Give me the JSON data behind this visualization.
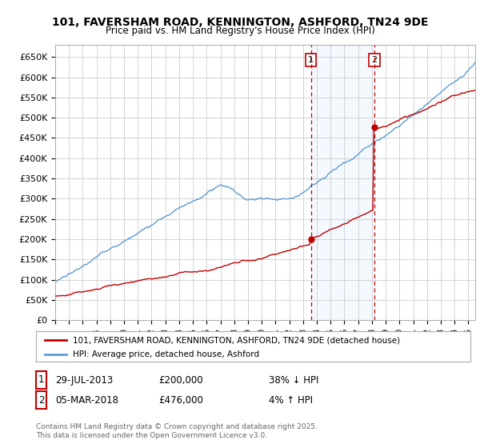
{
  "title_line1": "101, FAVERSHAM ROAD, KENNINGTON, ASHFORD, TN24 9DE",
  "title_line2": "Price paid vs. HM Land Registry's House Price Index (HPI)",
  "ylim": [
    0,
    680000
  ],
  "yticks": [
    0,
    50000,
    100000,
    150000,
    200000,
    250000,
    300000,
    350000,
    400000,
    450000,
    500000,
    550000,
    600000,
    650000
  ],
  "ytick_labels": [
    "£0",
    "£50K",
    "£100K",
    "£150K",
    "£200K",
    "£250K",
    "£300K",
    "£350K",
    "£400K",
    "£450K",
    "£500K",
    "£550K",
    "£600K",
    "£650K"
  ],
  "xlim_start": 1995.0,
  "xlim_end": 2025.5,
  "sale1_date": 2013.57,
  "sale1_price": 200000,
  "sale1_label": "1",
  "sale2_date": 2018.17,
  "sale2_price": 476000,
  "sale2_label": "2",
  "sale1_ann": "29-JUL-2013",
  "sale1_price_str": "£200,000",
  "sale1_hpi": "38% ↓ HPI",
  "sale2_ann": "05-MAR-2018",
  "sale2_price_str": "£476,000",
  "sale2_hpi": "4% ↑ HPI",
  "hpi_color": "#5B9BD5",
  "price_color": "#C00000",
  "shade_color": "#DDEEFF",
  "legend_label1": "101, FAVERSHAM ROAD, KENNINGTON, ASHFORD, TN24 9DE (detached house)",
  "legend_label2": "HPI: Average price, detached house, Ashford",
  "footer": "Contains HM Land Registry data © Crown copyright and database right 2025.\nThis data is licensed under the Open Government Licence v3.0.",
  "bg_color": "#ffffff",
  "grid_color": "#cccccc"
}
